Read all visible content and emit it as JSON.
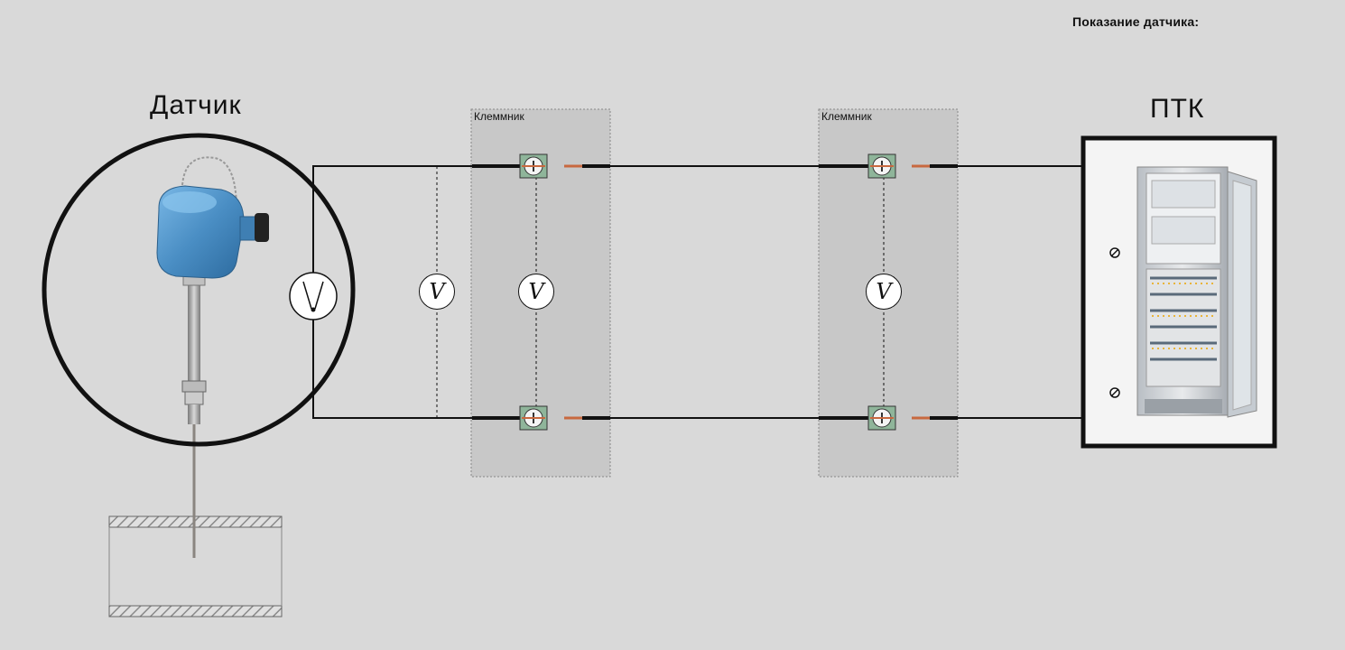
{
  "header": {
    "reading_label": "Показание датчика:"
  },
  "sensor": {
    "title": "Датчик"
  },
  "ptk": {
    "title": "ПТК"
  },
  "terminal_blocks": [
    {
      "label": "Клеммник"
    },
    {
      "label": "Клеммник"
    }
  ],
  "voltmeter": {
    "symbol": "V"
  },
  "colors": {
    "background": "#d9d9d9",
    "terminal_block": "#c8c8c8",
    "terminal_green": "#8fb59a",
    "sensor_head": "#4a8ec4",
    "wire": "#111111",
    "lead_copper": "#c8693f"
  }
}
